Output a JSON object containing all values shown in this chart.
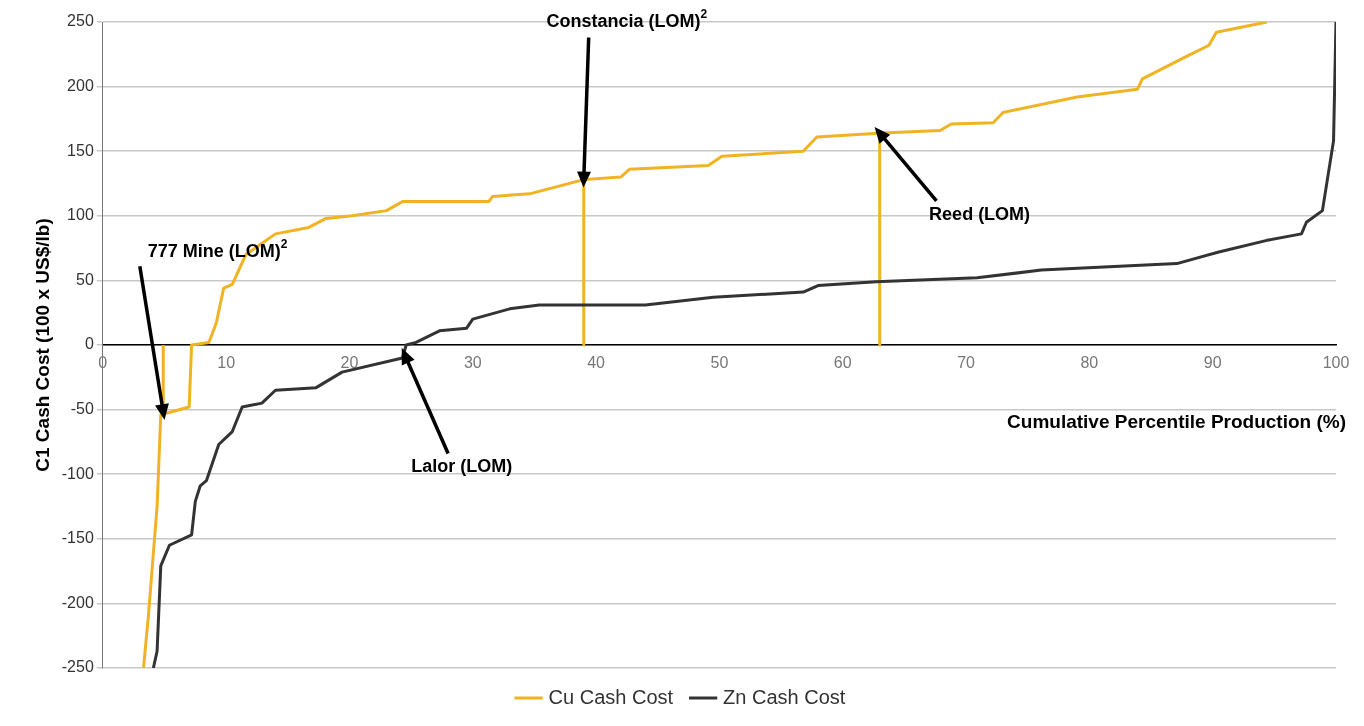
{
  "chart_data": {
    "type": "line",
    "ylabel": "C1 Cash Cost (100 x US$/lb)",
    "xlabel": "Cumulative Percentile Production (%)",
    "xlim": [
      0,
      100
    ],
    "xticks": [
      0,
      10,
      20,
      30,
      40,
      50,
      60,
      70,
      80,
      90,
      100
    ],
    "ylim": [
      -250,
      250
    ],
    "yticks": [
      -250,
      -200,
      -150,
      -100,
      -50,
      0,
      50,
      100,
      150,
      200,
      250
    ],
    "grid": "y",
    "legend": "bottom",
    "line_style": "solid",
    "series": [
      {
        "name": "Cu Cash Cost",
        "color": "#f0b323",
        "x": [
          3.3,
          3.7,
          4.4,
          4.7,
          7.0,
          7.2,
          8.6,
          9.2,
          9.8,
          10.5,
          11.6,
          14.0,
          16.7,
          18.1,
          20.2,
          23.0,
          24.3,
          31.3,
          31.6,
          34.6,
          39.0,
          42.0,
          42.7,
          49.1,
          50.2,
          56.8,
          57.9,
          63.2,
          67.9,
          68.8,
          72.2,
          73.0,
          79.0,
          83.9,
          84.3,
          87.6,
          89.7,
          90.3,
          94.4
        ],
        "values": [
          -250,
          -209,
          -125,
          -54,
          -48,
          0,
          2,
          17,
          44,
          47,
          70,
          86,
          91,
          98,
          100,
          104,
          111,
          111,
          115,
          117,
          128,
          130,
          136,
          139,
          146,
          150,
          161,
          164,
          166,
          171,
          172,
          180,
          192,
          198,
          206,
          222,
          232,
          242,
          250
        ]
      },
      {
        "name": "Zn Cash Cost",
        "color": "#333333",
        "x": [
          4.1,
          4.4,
          4.7,
          5.4,
          7.2,
          7.5,
          7.9,
          8.4,
          9.4,
          10.5,
          11.3,
          12.9,
          14.0,
          17.3,
          19.4,
          24.3,
          24.6,
          25.4,
          27.3,
          29.5,
          30.0,
          33.0,
          35.4,
          44.0,
          49.5,
          56.8,
          58.0,
          62.7,
          70.9,
          76.1,
          87.1,
          90.5,
          94.4,
          97.2,
          97.6,
          98.9,
          99.8,
          100
        ],
        "values": [
          -250,
          -237,
          -171,
          -155,
          -147,
          -121,
          -109,
          -105,
          -77,
          -67,
          -48,
          -45,
          -35,
          -33,
          -21,
          -10,
          0,
          2,
          11,
          13,
          20,
          28,
          31,
          31,
          37,
          41,
          46,
          49,
          52,
          58,
          63,
          72,
          81,
          86,
          95,
          104,
          158,
          250
        ]
      },
      {
        "type": "line",
        "color": "#f0b323",
        "x": [
          4.9,
          4.9
        ],
        "values": [
          -52,
          0
        ]
      },
      {
        "type": "line",
        "color": "#f0b323",
        "x": [
          39,
          39
        ],
        "values": [
          128,
          0
        ]
      },
      {
        "type": "line",
        "color": "#f0b323",
        "x": [
          63,
          63
        ],
        "values": [
          164,
          0
        ]
      }
    ],
    "annotations": [
      {
        "text": "777 Mine (LOM)$^{2}$",
        "x": 4.9,
        "y": -52
      },
      {
        "text": "Constancia (LOM)$^{2}$",
        "x": 39,
        "y": 128
      },
      {
        "text": "Reed (LOM)",
        "x": 63,
        "y": 164
      },
      {
        "text": "Lalor (LOM)",
        "x": 24.5,
        "y": -8
      }
    ]
  }
}
